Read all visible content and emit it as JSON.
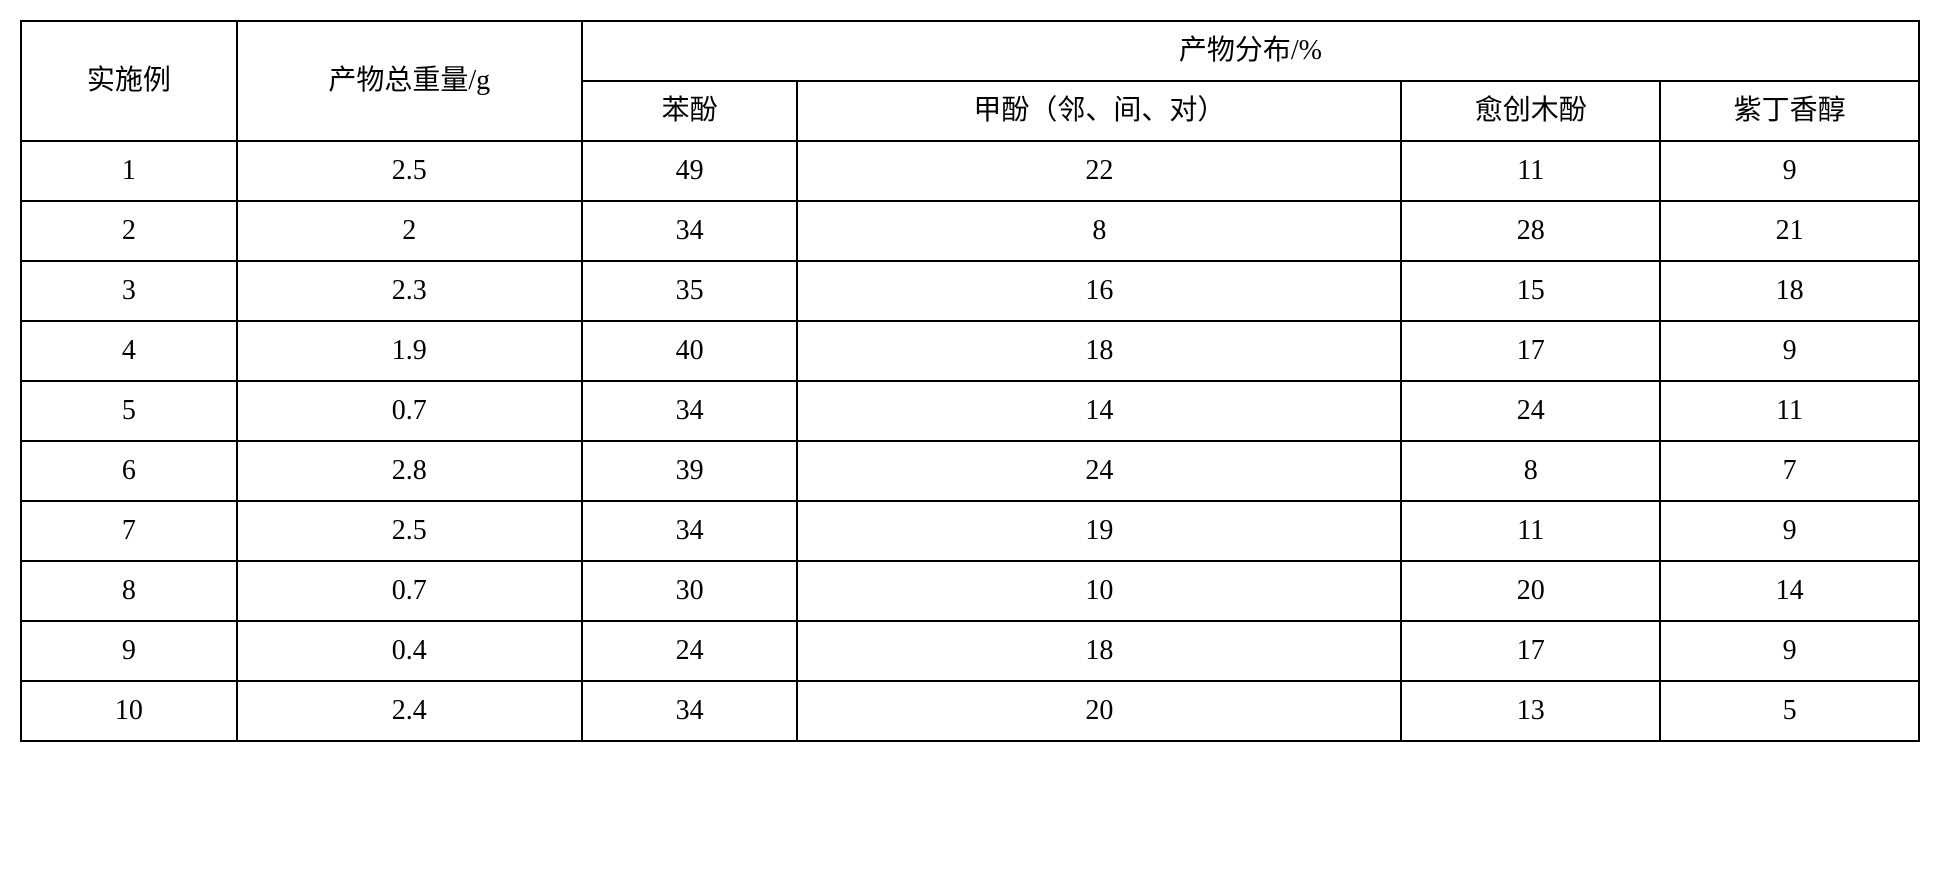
{
  "table": {
    "headers": {
      "example": "实施例",
      "total_weight": "产物总重量/g",
      "distribution": "产物分布/%",
      "phenol": "苯酚",
      "cresol": "甲酚（邻、间、对）",
      "guaiacol": "愈创木酚",
      "syringol": "紫丁香醇"
    },
    "rows": [
      {
        "example": "1",
        "weight": "2.5",
        "phenol": "49",
        "cresol": "22",
        "guaiacol": "11",
        "syringol": "9"
      },
      {
        "example": "2",
        "weight": "2",
        "phenol": "34",
        "cresol": "8",
        "guaiacol": "28",
        "syringol": "21"
      },
      {
        "example": "3",
        "weight": "2.3",
        "phenol": "35",
        "cresol": "16",
        "guaiacol": "15",
        "syringol": "18"
      },
      {
        "example": "4",
        "weight": "1.9",
        "phenol": "40",
        "cresol": "18",
        "guaiacol": "17",
        "syringol": "9"
      },
      {
        "example": "5",
        "weight": "0.7",
        "phenol": "34",
        "cresol": "14",
        "guaiacol": "24",
        "syringol": "11"
      },
      {
        "example": "6",
        "weight": "2.8",
        "phenol": "39",
        "cresol": "24",
        "guaiacol": "8",
        "syringol": "7"
      },
      {
        "example": "7",
        "weight": "2.5",
        "phenol": "34",
        "cresol": "19",
        "guaiacol": "11",
        "syringol": "9"
      },
      {
        "example": "8",
        "weight": "0.7",
        "phenol": "30",
        "cresol": "10",
        "guaiacol": "20",
        "syringol": "14"
      },
      {
        "example": "9",
        "weight": "0.4",
        "phenol": "24",
        "cresol": "18",
        "guaiacol": "17",
        "syringol": "9"
      },
      {
        "example": "10",
        "weight": "2.4",
        "phenol": "34",
        "cresol": "20",
        "guaiacol": "13",
        "syringol": "5"
      }
    ],
    "styling": {
      "border_color": "#000000",
      "border_width": 2,
      "background_color": "#ffffff",
      "text_color": "#000000",
      "font_size": 28,
      "font_family": "SimSun"
    }
  }
}
